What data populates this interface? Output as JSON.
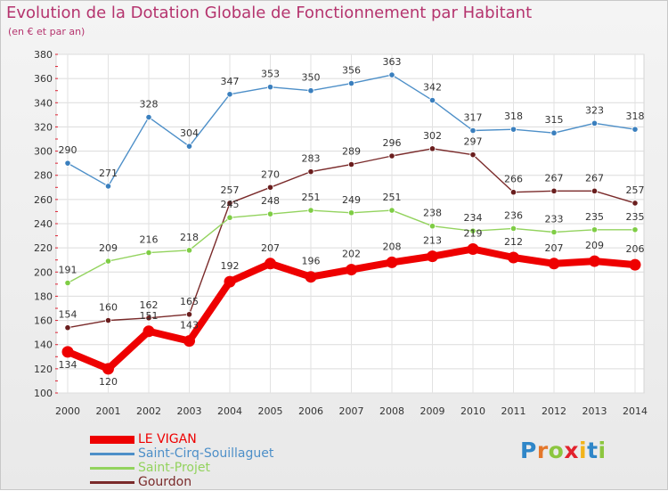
{
  "title": "Evolution de la Dotation Globale de Fonctionnement par Habitant",
  "subtitle": "(en € et par an)",
  "brand": {
    "letters": [
      "P",
      "r",
      "o",
      "x",
      "i",
      "t",
      "i"
    ],
    "colors": [
      "#2f86c8",
      "#e4772b",
      "#8cc63f",
      "#e2222d",
      "#f2b319",
      "#2f86c8",
      "#8cc63f"
    ]
  },
  "chart_data": {
    "type": "line",
    "title": "Evolution de la Dotation Globale de Fonctionnement par Habitant",
    "subtitle": "(en € et par an)",
    "xlabel": "",
    "ylabel": "",
    "ylim": [
      100,
      380
    ],
    "yticks": [
      100,
      120,
      140,
      160,
      180,
      200,
      220,
      240,
      260,
      280,
      300,
      320,
      340,
      360,
      380
    ],
    "grid": true,
    "legend": "bottom-left",
    "x": [
      "2000",
      "2001",
      "2002",
      "2003",
      "2004",
      "2005",
      "2006",
      "2007",
      "2008",
      "2009",
      "2010",
      "2011",
      "2012",
      "2013",
      "2014"
    ],
    "series": [
      {
        "name": "Saint-Cirq-Souillaguet",
        "color": "#4d8fc8",
        "marker": "#3a7fbe",
        "values": [
          290,
          271,
          328,
          304,
          347,
          353,
          350,
          356,
          363,
          342,
          317,
          318,
          315,
          323,
          318
        ]
      },
      {
        "name": "Gourdon",
        "color": "#7a2a2a",
        "marker": "#6a1e1e",
        "values": [
          154,
          160,
          162,
          165,
          257,
          270,
          283,
          289,
          296,
          302,
          297,
          266,
          267,
          267,
          257
        ]
      },
      {
        "name": "Saint-Projet",
        "color": "#93d35e",
        "marker": "#7fcd45",
        "values": [
          191,
          209,
          216,
          218,
          245,
          248,
          251,
          249,
          251,
          238,
          234,
          236,
          233,
          235,
          235
        ]
      },
      {
        "name": "LE VIGAN",
        "color": "#ee0000",
        "marker": "#ee0000",
        "values": [
          134,
          120,
          151,
          143,
          192,
          207,
          196,
          202,
          208,
          213,
          219,
          212,
          207,
          209,
          206
        ]
      }
    ],
    "legend_order": [
      "LE VIGAN",
      "Saint-Cirq-Souillaguet",
      "Saint-Projet",
      "Gourdon"
    ]
  }
}
